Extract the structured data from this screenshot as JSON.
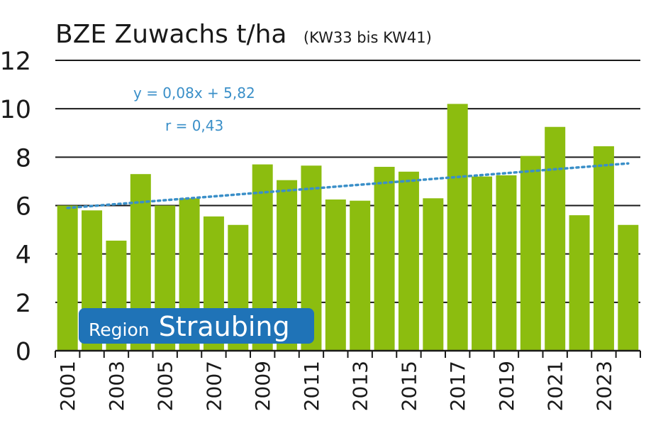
{
  "chart_data": {
    "type": "bar",
    "title": "BZE Zuwachs t/ha",
    "subtitle": "(KW33 bis KW41)",
    "xlabel": "",
    "ylabel": "",
    "ylim": [
      0,
      12
    ],
    "yticks": [
      "0",
      "2",
      "4",
      "6",
      "8",
      "10",
      "12"
    ],
    "grid": true,
    "categories": [
      "2001",
      "2002",
      "2003",
      "2004",
      "2005",
      "2006",
      "2007",
      "2008",
      "2009",
      "2010",
      "2011",
      "2012",
      "2013",
      "2014",
      "2015",
      "2016",
      "2017",
      "2018",
      "2019",
      "2020",
      "2021",
      "2022",
      "2023",
      "2024"
    ],
    "xtick_labels": [
      "2001",
      "",
      "2003",
      "",
      "2005",
      "",
      "2007",
      "",
      "2009",
      "",
      "2011",
      "",
      "2013",
      "",
      "2015",
      "",
      "2017",
      "",
      "2019",
      "",
      "2021",
      "",
      "2023",
      ""
    ],
    "values": [
      6.0,
      5.8,
      4.55,
      7.3,
      6.0,
      6.3,
      5.55,
      5.2,
      7.7,
      7.05,
      7.65,
      6.25,
      6.2,
      7.6,
      7.4,
      6.3,
      10.2,
      7.2,
      7.25,
      8.05,
      9.25,
      5.6,
      8.45,
      5.2
    ],
    "bar_color": "#8cbd0f",
    "trendline": {
      "equation": "y = 0,08x + 5,82",
      "r_label": "r = 0,43",
      "slope": 0.08,
      "intercept": 5.82,
      "color": "#3a8fc8",
      "style": "dotted"
    },
    "badge": {
      "small": "Region",
      "large": "Straubing",
      "color": "#1f73b7"
    }
  }
}
